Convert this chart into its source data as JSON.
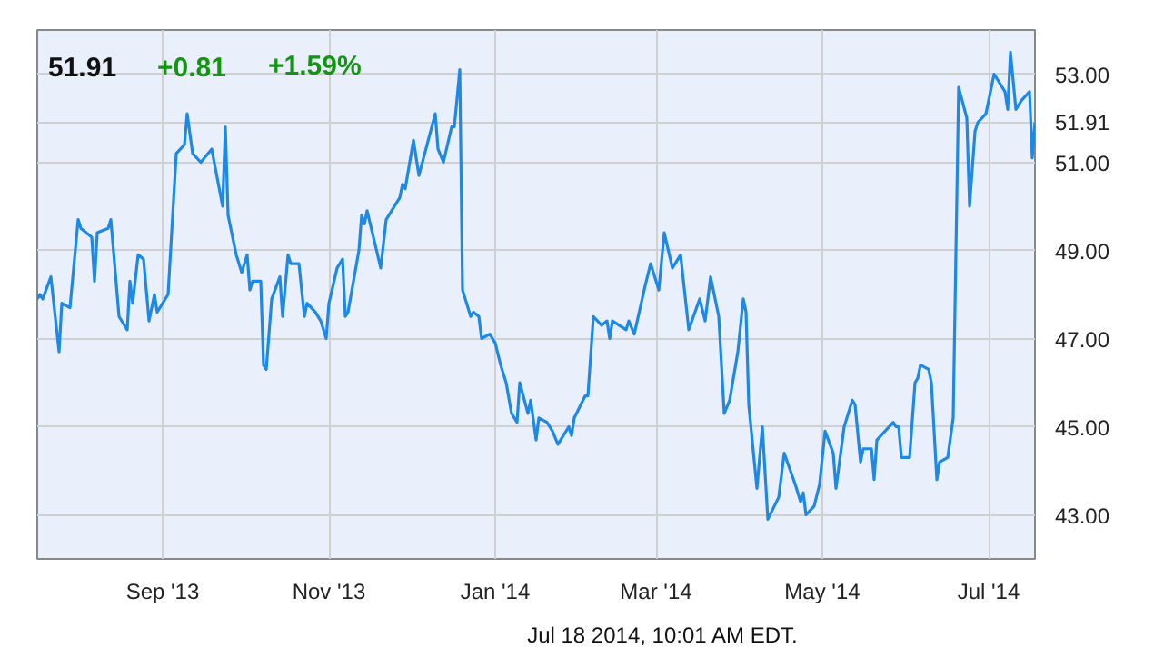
{
  "chart_data": {
    "type": "line",
    "title": "51.91",
    "annotations": [
      "+0.81",
      "+1.59%",
      "Jul 18 2014, 10:01 AM EDT."
    ],
    "x": [
      "2013-07-17",
      "2013-07-18",
      "2013-07-19",
      "2013-07-22",
      "2013-07-25",
      "2013-07-26",
      "2013-07-29",
      "2013-08-01",
      "2013-08-02",
      "2013-08-06",
      "2013-08-07",
      "2013-08-08",
      "2013-08-12",
      "2013-08-13",
      "2013-08-16",
      "2013-08-19",
      "2013-08-20",
      "2013-08-21",
      "2013-08-23",
      "2013-08-25",
      "2013-08-27",
      "2013-08-29",
      "2013-08-30",
      "2013-09-03",
      "2013-09-06",
      "2013-09-09",
      "2013-09-10",
      "2013-09-12",
      "2013-09-15",
      "2013-09-19",
      "2013-09-23",
      "2013-09-24",
      "2013-09-25",
      "2013-09-28",
      "2013-09-30",
      "2013-10-02",
      "2013-10-03",
      "2013-10-04",
      "2013-10-07",
      "2013-10-08",
      "2013-10-09",
      "2013-10-11",
      "2013-10-14",
      "2013-10-15",
      "2013-10-17",
      "2013-10-18",
      "2013-10-21",
      "2013-10-23",
      "2013-10-24",
      "2013-10-27",
      "2013-10-29",
      "2013-10-31",
      "2013-11-01",
      "2013-11-04",
      "2013-11-06",
      "2013-11-07",
      "2013-11-08",
      "2013-11-12",
      "2013-11-13",
      "2013-11-14",
      "2013-11-15",
      "2013-11-20",
      "2013-11-22",
      "2013-11-26",
      "2013-11-27",
      "2013-11-28",
      "2013-11-29",
      "2013-12-02",
      "2013-12-04",
      "2013-12-07",
      "2013-12-10",
      "2013-12-11",
      "2013-12-13",
      "2013-12-16",
      "2013-12-17",
      "2013-12-19",
      "2013-12-20",
      "2013-12-23",
      "2013-12-24",
      "2013-12-26",
      "2013-12-27",
      "2013-12-30",
      "2014-01-01",
      "2014-01-03",
      "2014-01-05",
      "2014-01-07",
      "2014-01-09",
      "2014-01-10",
      "2014-01-13",
      "2014-01-14",
      "2014-01-16",
      "2014-01-17",
      "2014-01-20",
      "2014-01-22",
      "2014-01-24",
      "2014-01-28",
      "2014-01-29",
      "2014-01-30",
      "2014-02-03",
      "2014-02-04",
      "2014-02-06",
      "2014-02-09",
      "2014-02-11",
      "2014-02-12",
      "2014-02-13",
      "2014-02-18",
      "2014-02-19",
      "2014-02-21",
      "2014-02-25",
      "2014-02-27",
      "2014-03-02",
      "2014-03-04",
      "2014-03-07",
      "2014-03-10",
      "2014-03-13",
      "2014-03-17",
      "2014-03-19",
      "2014-03-21",
      "2014-03-24",
      "2014-03-26",
      "2014-03-28",
      "2014-03-31",
      "2014-04-02",
      "2014-04-03",
      "2014-04-04",
      "2014-04-07",
      "2014-04-09",
      "2014-04-11",
      "2014-04-15",
      "2014-04-17",
      "2014-04-21",
      "2014-04-23",
      "2014-04-24",
      "2014-04-25",
      "2014-04-28",
      "2014-04-30",
      "2014-05-02",
      "2014-05-05",
      "2014-05-06",
      "2014-05-09",
      "2014-05-12",
      "2014-05-13",
      "2014-05-15",
      "2014-05-16",
      "2014-05-19",
      "2014-05-20",
      "2014-05-21",
      "2014-05-27",
      "2014-05-28",
      "2014-05-29",
      "2014-05-30",
      "2014-06-02",
      "2014-06-04",
      "2014-06-05",
      "2014-06-06",
      "2014-06-09",
      "2014-06-10",
      "2014-06-12",
      "2014-06-13",
      "2014-06-16",
      "2014-06-18",
      "2014-06-20",
      "2014-06-23",
      "2014-06-24",
      "2014-06-26",
      "2014-06-27",
      "2014-06-30",
      "2014-07-03",
      "2014-07-07",
      "2014-07-08",
      "2014-07-09",
      "2014-07-11",
      "2014-07-13",
      "2014-07-16",
      "2014-07-17",
      "2014-07-18"
    ],
    "series": [
      {
        "color": "#1e88e5",
        "values": [
          47.9,
          48.0,
          47.9,
          48.4,
          46.7,
          47.8,
          47.7,
          49.7,
          49.5,
          49.3,
          48.3,
          49.4,
          49.5,
          49.7,
          47.5,
          47.2,
          48.3,
          47.8,
          48.9,
          48.8,
          47.4,
          48.0,
          47.6,
          48.0,
          51.2,
          51.4,
          52.1,
          51.2,
          51.0,
          51.3,
          50.0,
          51.8,
          49.8,
          48.9,
          48.5,
          48.9,
          48.1,
          48.3,
          48.3,
          46.4,
          46.3,
          47.9,
          48.4,
          47.5,
          48.9,
          48.7,
          48.7,
          47.5,
          47.8,
          47.6,
          47.4,
          47.0,
          47.8,
          48.6,
          48.8,
          47.5,
          47.6,
          49.0,
          49.8,
          49.6,
          49.9,
          48.6,
          49.7,
          50.1,
          50.2,
          50.5,
          50.4,
          51.5,
          50.7,
          51.4,
          52.1,
          51.3,
          51.0,
          51.8,
          51.8,
          53.1,
          48.1,
          47.5,
          47.6,
          47.5,
          47.0,
          47.1,
          46.9,
          46.4,
          46.0,
          45.3,
          45.1,
          46.0,
          45.3,
          45.6,
          44.7,
          45.2,
          45.1,
          44.9,
          44.6,
          45.0,
          44.8,
          45.2,
          45.7,
          45.7,
          47.5,
          47.3,
          47.4,
          47.0,
          47.4,
          47.2,
          47.4,
          47.1,
          48.2,
          48.7,
          48.1,
          49.4,
          48.6,
          48.9,
          47.2,
          47.9,
          47.4,
          48.4,
          47.5,
          45.3,
          45.6,
          46.7,
          47.9,
          47.6,
          45.5,
          43.6,
          45.0,
          42.9,
          43.4,
          44.4,
          43.7,
          43.3,
          43.5,
          43.0,
          43.2,
          43.7,
          44.9,
          44.4,
          43.6,
          45.0,
          45.6,
          45.5,
          44.2,
          44.5,
          44.5,
          43.8,
          44.7,
          45.1,
          45.0,
          45.0,
          44.3,
          44.3,
          46.0,
          46.1,
          46.4,
          46.3,
          46.0,
          43.8,
          44.2,
          44.3,
          45.2,
          52.7,
          52.0,
          50.0,
          51.7,
          51.9,
          52.1,
          53.0,
          52.6,
          52.2,
          53.5,
          52.2,
          52.4,
          52.6,
          51.1,
          51.91
        ]
      }
    ],
    "xlim": [
      "2013-07-17",
      "2014-07-18"
    ],
    "xticks": [
      {
        "value": "2013-09-01",
        "label": "Sep '13"
      },
      {
        "value": "2013-11-01",
        "label": "Nov '13"
      },
      {
        "value": "2014-01-01",
        "label": "Jan '14"
      },
      {
        "value": "2014-03-01",
        "label": "Mar '14"
      },
      {
        "value": "2014-05-01",
        "label": "May '14"
      },
      {
        "value": "2014-07-01",
        "label": "Jul '14"
      }
    ],
    "ylim": [
      42,
      54
    ],
    "yticks": [
      {
        "value": 43,
        "label": "43.00"
      },
      {
        "value": 45,
        "label": "45.00"
      },
      {
        "value": 47,
        "label": "47.00"
      },
      {
        "value": 49,
        "label": "49.00"
      },
      {
        "value": 51,
        "label": "51.00"
      },
      {
        "value": 51.91,
        "label": "51.91"
      },
      {
        "value": 53,
        "label": "53.00"
      }
    ],
    "grid": true
  }
}
